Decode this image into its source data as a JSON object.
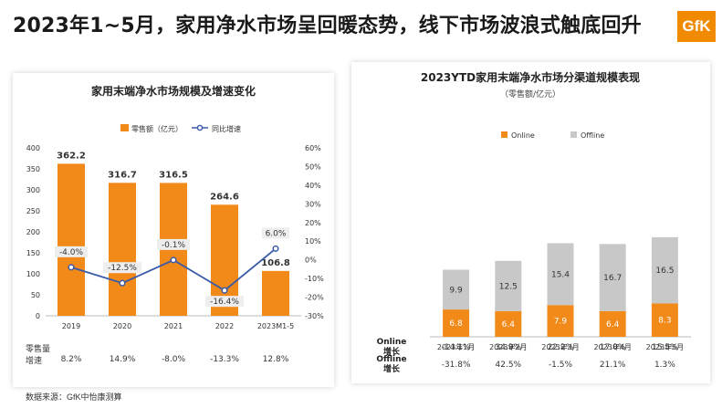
{
  "page": {
    "title": "2023年1~5月，家用净水市场呈回暖态势，线下市场波浪式触底回升",
    "logo_text": "GfK",
    "footnote": "数据来源：GfK中怡康测算"
  },
  "colors": {
    "orange": "#f28a1a",
    "gray": "#c8c8c8",
    "line": "#3a5aa8"
  },
  "chart_data": [
    {
      "type": "bar",
      "title": "家用末端净水市场规模及增速变化",
      "categories": [
        "2019",
        "2020",
        "2021",
        "2022",
        "2023M1-5"
      ],
      "series": [
        {
          "name": "零售额（亿元）",
          "type": "bar",
          "axis": "left",
          "values": [
            362.2,
            316.7,
            316.5,
            264.6,
            106.8
          ]
        },
        {
          "name": "同比增速",
          "type": "line",
          "axis": "right",
          "values": [
            -4.0,
            -12.5,
            -0.1,
            -16.4,
            6.0
          ],
          "labels": [
            "-4.0%",
            "-12.5%",
            "-0.1%",
            "-16.4%",
            "6.0%"
          ]
        }
      ],
      "bar_labels": [
        "362.2",
        "316.7",
        "316.5",
        "264.6",
        "106.8"
      ],
      "ylim_left": [
        0,
        400
      ],
      "yticks_left": [
        "0",
        "50",
        "100",
        "150",
        "200",
        "250",
        "300",
        "350",
        "400"
      ],
      "ylim_right": [
        -30,
        60
      ],
      "yticks_right": [
        "-30%",
        "-20%",
        "-10%",
        "0%",
        "10%",
        "20%",
        "30%",
        "40%",
        "50%",
        "60%"
      ],
      "legend_position": "top",
      "table": {
        "row_label": "零售量 增速",
        "values": [
          "8.2%",
          "14.9%",
          "-8.0%",
          "-13.3%",
          "12.8%"
        ]
      }
    },
    {
      "type": "bar",
      "stacked": true,
      "title": "2023YTD家用末端净水市场分渠道规模表现",
      "subtitle": "（零售额/亿元）",
      "categories": [
        "2023年1月",
        "2023年2月",
        "2023年3月",
        "2023年4月",
        "2023年5月"
      ],
      "series": [
        {
          "name": "Online",
          "values": [
            6.8,
            6.4,
            7.9,
            6.4,
            8.3
          ],
          "labels": [
            "6.8",
            "6.4",
            "7.9",
            "6.4",
            "8.3"
          ]
        },
        {
          "name": "Offline",
          "values": [
            9.9,
            12.5,
            15.4,
            16.7,
            16.5
          ],
          "labels": [
            "9.9",
            "12.5",
            "15.4",
            "16.7",
            "16.5"
          ]
        }
      ],
      "legend_position": "top",
      "table": [
        {
          "label": "Online 增长",
          "values": [
            "-14.1%",
            "34.9%",
            "22.2%",
            "17.0%",
            "15.5%"
          ]
        },
        {
          "label": "Offline 增长",
          "values": [
            "-31.8%",
            "42.5%",
            "-1.5%",
            "21.1%",
            "1.3%"
          ]
        }
      ]
    }
  ]
}
